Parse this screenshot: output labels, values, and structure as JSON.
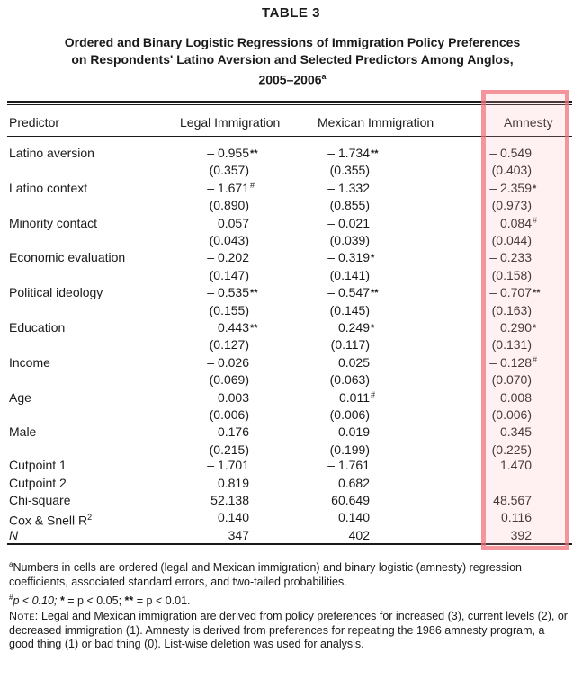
{
  "table_label": "TABLE 3",
  "title_line1": "Ordered and Binary Logistic Regressions of Immigration Policy Preferences",
  "title_line2": "on Respondents' Latino Aversion and Selected Predictors Among Anglos,",
  "title_line3": "2005–2006",
  "title_sup": "a",
  "columns": {
    "predictor": "Predictor",
    "legal": "Legal Immigration",
    "mexican": "Mexican Immigration",
    "amnesty": "Amnesty"
  },
  "rows": [
    {
      "label": "Latino aversion",
      "legal": {
        "coef": "– 0.955",
        "mark": "**",
        "se": "(0.357)"
      },
      "mexican": {
        "coef": "– 1.734",
        "mark": "**",
        "se": "(0.355)"
      },
      "amnesty": {
        "coef": "– 0.549",
        "mark": "",
        "se": "(0.403)"
      }
    },
    {
      "label": "Latino context",
      "legal": {
        "coef": "– 1.671",
        "mark": "#",
        "se": "(0.890)"
      },
      "mexican": {
        "coef": "– 1.332",
        "mark": "",
        "se": "(0.855)"
      },
      "amnesty": {
        "coef": "– 2.359",
        "mark": "*",
        "se": "(0.973)"
      }
    },
    {
      "label": "Minority contact",
      "legal": {
        "coef": "0.057",
        "mark": "",
        "se": "(0.043)"
      },
      "mexican": {
        "coef": "– 0.021",
        "mark": "",
        "se": "(0.039)"
      },
      "amnesty": {
        "coef": "0.084",
        "mark": "#",
        "se": "(0.044)"
      }
    },
    {
      "label": "Economic evaluation",
      "legal": {
        "coef": "– 0.202",
        "mark": "",
        "se": "(0.147)"
      },
      "mexican": {
        "coef": "– 0.319",
        "mark": "*",
        "se": "(0.141)"
      },
      "amnesty": {
        "coef": "– 0.233",
        "mark": "",
        "se": "(0.158)"
      }
    },
    {
      "label": "Political ideology",
      "legal": {
        "coef": "– 0.535",
        "mark": "**",
        "se": "(0.155)"
      },
      "mexican": {
        "coef": "– 0.547",
        "mark": "**",
        "se": "(0.145)"
      },
      "amnesty": {
        "coef": "– 0.707",
        "mark": "**",
        "se": "(0.163)"
      }
    },
    {
      "label": "Education",
      "legal": {
        "coef": "0.443",
        "mark": "**",
        "se": "(0.127)"
      },
      "mexican": {
        "coef": "0.249",
        "mark": "*",
        "se": "(0.117)"
      },
      "amnesty": {
        "coef": "0.290",
        "mark": "*",
        "se": "(0.131)"
      }
    },
    {
      "label": "Income",
      "legal": {
        "coef": "– 0.026",
        "mark": "",
        "se": "(0.069)"
      },
      "mexican": {
        "coef": "0.025",
        "mark": "",
        "se": "(0.063)"
      },
      "amnesty": {
        "coef": "– 0.128",
        "mark": "#",
        "se": "(0.070)"
      }
    },
    {
      "label": "Age",
      "legal": {
        "coef": "0.003",
        "mark": "",
        "se": "(0.006)"
      },
      "mexican": {
        "coef": "0.011",
        "mark": "#",
        "se": "(0.006)"
      },
      "amnesty": {
        "coef": "0.008",
        "mark": "",
        "se": "(0.006)"
      }
    },
    {
      "label": "Male",
      "legal": {
        "coef": "0.176",
        "mark": "",
        "se": "(0.215)"
      },
      "mexican": {
        "coef": "0.019",
        "mark": "",
        "se": "(0.199)"
      },
      "amnesty": {
        "coef": "– 0.345",
        "mark": "",
        "se": "(0.225)"
      }
    }
  ],
  "stats": [
    {
      "label": "Cutpoint 1",
      "legal": "– 1.701",
      "mexican": "– 1.761",
      "amnesty": "1.470"
    },
    {
      "label": "Cutpoint 2",
      "legal": "0.819",
      "mexican": "0.682",
      "amnesty": ""
    },
    {
      "label": "Chi-square",
      "legal": "52.138",
      "mexican": "60.649",
      "amnesty": "48.567"
    },
    {
      "label": "Cox & Snell R",
      "label_sup": "2",
      "legal": "0.140",
      "mexican": "0.140",
      "amnesty": "0.116"
    },
    {
      "label": "N",
      "legal": "347",
      "mexican": "402",
      "amnesty": "392"
    }
  ],
  "notes": {
    "a_marker": "a",
    "a_text": "Numbers in cells are ordered (legal and Mexican immigration) and binary logistic (amnesty) regression coefficients, associated standard errors, and two-tailed probabilities.",
    "sig": [
      {
        "mark": "#",
        "text": "p < 0.10;"
      },
      {
        "mark": "*",
        "text": " = p < 0.05;"
      },
      {
        "mark": "**",
        "text": " = p < 0.01."
      }
    ],
    "note_label": "Note:",
    "note_text": "Legal and Mexican immigration are derived from policy preferences for increased (3), current levels (2), or decreased immigration (1). Amnesty is derived from preferences for repeating the 1986 amnesty program, a good thing (1) or bad thing (0). List-wise deletion was used for analysis."
  },
  "highlight_color": "#f06e78"
}
